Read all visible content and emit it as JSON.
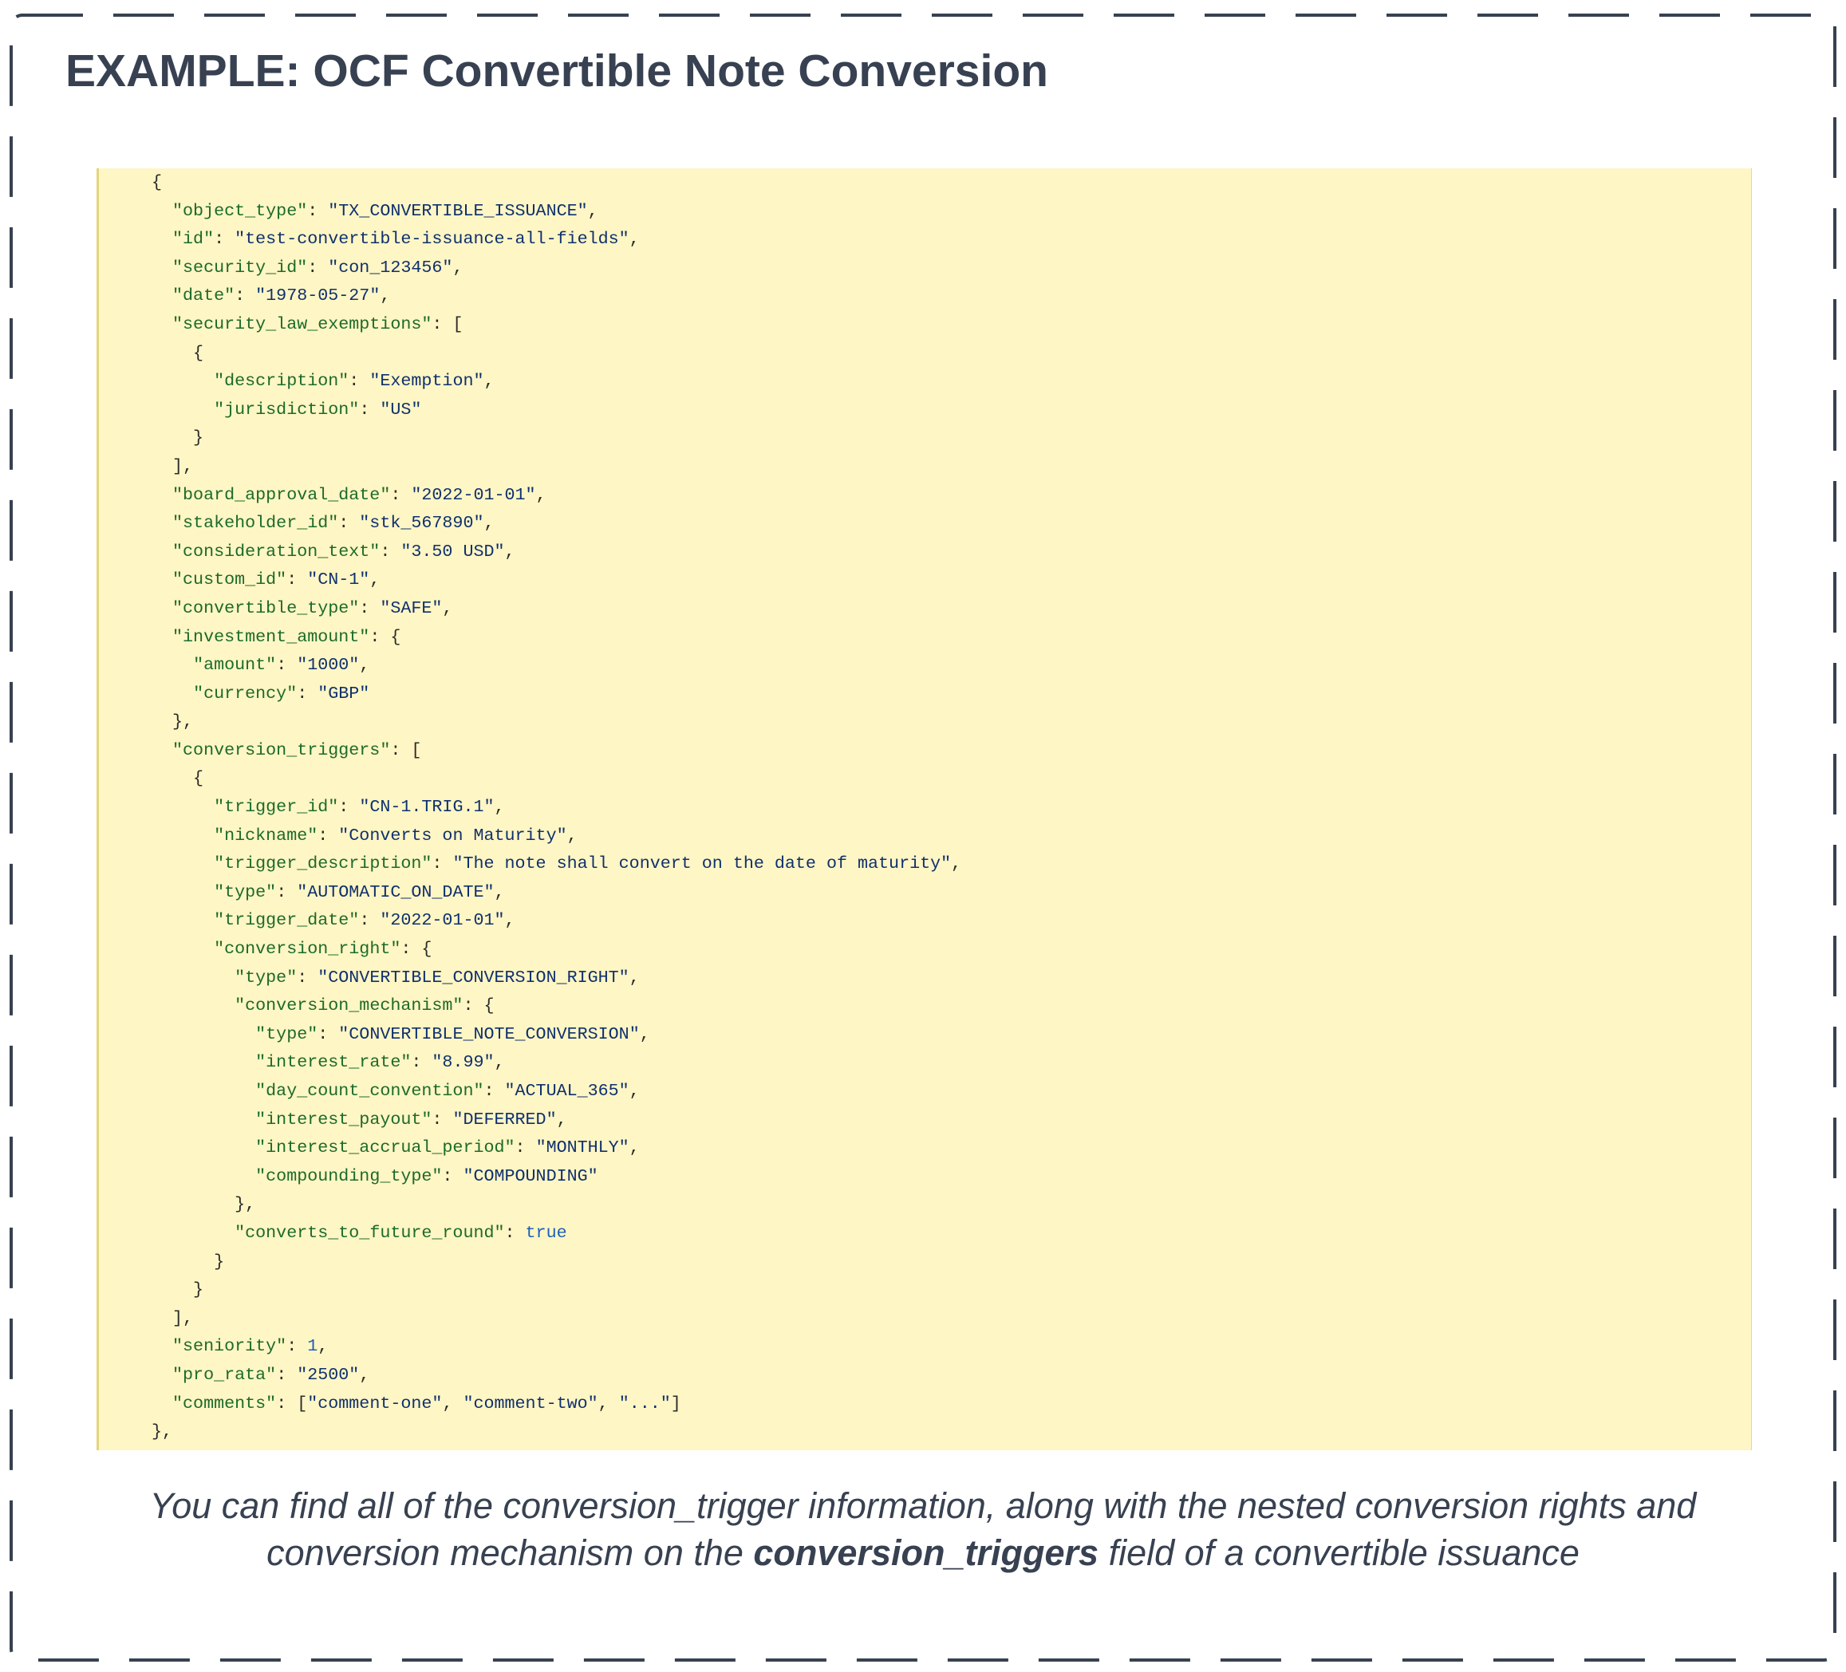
{
  "title": "EXAMPLE: OCF Convertible Note Conversion",
  "colors": {
    "border": "#374151",
    "code_bg": "#fef6c4",
    "key": "#1d6a2b",
    "string": "#10306e",
    "literal": "#1f5fb8"
  },
  "code_lines": [
    [
      [
        "p",
        "{"
      ]
    ],
    [
      [
        "p",
        "  "
      ],
      [
        "k",
        "\"object_type\""
      ],
      [
        "p",
        ": "
      ],
      [
        "s",
        "\"TX_CONVERTIBLE_ISSUANCE\""
      ],
      [
        "p",
        ","
      ]
    ],
    [
      [
        "p",
        "  "
      ],
      [
        "k",
        "\"id\""
      ],
      [
        "p",
        ": "
      ],
      [
        "s",
        "\"test-convertible-issuance-all-fields\""
      ],
      [
        "p",
        ","
      ]
    ],
    [
      [
        "p",
        "  "
      ],
      [
        "k",
        "\"security_id\""
      ],
      [
        "p",
        ": "
      ],
      [
        "s",
        "\"con_123456\""
      ],
      [
        "p",
        ","
      ]
    ],
    [
      [
        "p",
        "  "
      ],
      [
        "k",
        "\"date\""
      ],
      [
        "p",
        ": "
      ],
      [
        "s",
        "\"1978-05-27\""
      ],
      [
        "p",
        ","
      ]
    ],
    [
      [
        "p",
        "  "
      ],
      [
        "k",
        "\"security_law_exemptions\""
      ],
      [
        "p",
        ": ["
      ]
    ],
    [
      [
        "p",
        "    {"
      ]
    ],
    [
      [
        "p",
        "      "
      ],
      [
        "k",
        "\"description\""
      ],
      [
        "p",
        ": "
      ],
      [
        "s",
        "\"Exemption\""
      ],
      [
        "p",
        ","
      ]
    ],
    [
      [
        "p",
        "      "
      ],
      [
        "k",
        "\"jurisdiction\""
      ],
      [
        "p",
        ": "
      ],
      [
        "s",
        "\"US\""
      ]
    ],
    [
      [
        "p",
        "    }"
      ]
    ],
    [
      [
        "p",
        "  ],"
      ]
    ],
    [
      [
        "p",
        "  "
      ],
      [
        "k",
        "\"board_approval_date\""
      ],
      [
        "p",
        ": "
      ],
      [
        "s",
        "\"2022-01-01\""
      ],
      [
        "p",
        ","
      ]
    ],
    [
      [
        "p",
        "  "
      ],
      [
        "k",
        "\"stakeholder_id\""
      ],
      [
        "p",
        ": "
      ],
      [
        "s",
        "\"stk_567890\""
      ],
      [
        "p",
        ","
      ]
    ],
    [
      [
        "p",
        "  "
      ],
      [
        "k",
        "\"consideration_text\""
      ],
      [
        "p",
        ": "
      ],
      [
        "s",
        "\"3.50 USD\""
      ],
      [
        "p",
        ","
      ]
    ],
    [
      [
        "p",
        "  "
      ],
      [
        "k",
        "\"custom_id\""
      ],
      [
        "p",
        ": "
      ],
      [
        "s",
        "\"CN-1\""
      ],
      [
        "p",
        ","
      ]
    ],
    [
      [
        "p",
        "  "
      ],
      [
        "k",
        "\"convertible_type\""
      ],
      [
        "p",
        ": "
      ],
      [
        "s",
        "\"SAFE\""
      ],
      [
        "p",
        ","
      ]
    ],
    [
      [
        "p",
        "  "
      ],
      [
        "k",
        "\"investment_amount\""
      ],
      [
        "p",
        ": {"
      ]
    ],
    [
      [
        "p",
        "    "
      ],
      [
        "k",
        "\"amount\""
      ],
      [
        "p",
        ": "
      ],
      [
        "s",
        "\"1000\""
      ],
      [
        "p",
        ","
      ]
    ],
    [
      [
        "p",
        "    "
      ],
      [
        "k",
        "\"currency\""
      ],
      [
        "p",
        ": "
      ],
      [
        "s",
        "\"GBP\""
      ]
    ],
    [
      [
        "p",
        "  },"
      ]
    ],
    [
      [
        "p",
        "  "
      ],
      [
        "k",
        "\"conversion_triggers\""
      ],
      [
        "p",
        ": ["
      ]
    ],
    [
      [
        "p",
        "    {"
      ]
    ],
    [
      [
        "p",
        "      "
      ],
      [
        "k",
        "\"trigger_id\""
      ],
      [
        "p",
        ": "
      ],
      [
        "s",
        "\"CN-1.TRIG.1\""
      ],
      [
        "p",
        ","
      ]
    ],
    [
      [
        "p",
        "      "
      ],
      [
        "k",
        "\"nickname\""
      ],
      [
        "p",
        ": "
      ],
      [
        "s",
        "\"Converts on Maturity\""
      ],
      [
        "p",
        ","
      ]
    ],
    [
      [
        "p",
        "      "
      ],
      [
        "k",
        "\"trigger_description\""
      ],
      [
        "p",
        ": "
      ],
      [
        "s",
        "\"The note shall convert on the date of maturity\""
      ],
      [
        "p",
        ","
      ]
    ],
    [
      [
        "p",
        "      "
      ],
      [
        "k",
        "\"type\""
      ],
      [
        "p",
        ": "
      ],
      [
        "s",
        "\"AUTOMATIC_ON_DATE\""
      ],
      [
        "p",
        ","
      ]
    ],
    [
      [
        "p",
        "      "
      ],
      [
        "k",
        "\"trigger_date\""
      ],
      [
        "p",
        ": "
      ],
      [
        "s",
        "\"2022-01-01\""
      ],
      [
        "p",
        ","
      ]
    ],
    [
      [
        "p",
        "      "
      ],
      [
        "k",
        "\"conversion_right\""
      ],
      [
        "p",
        ": {"
      ]
    ],
    [
      [
        "p",
        "        "
      ],
      [
        "k",
        "\"type\""
      ],
      [
        "p",
        ": "
      ],
      [
        "s",
        "\"CONVERTIBLE_CONVERSION_RIGHT\""
      ],
      [
        "p",
        ","
      ]
    ],
    [
      [
        "p",
        "        "
      ],
      [
        "k",
        "\"conversion_mechanism\""
      ],
      [
        "p",
        ": {"
      ]
    ],
    [
      [
        "p",
        "          "
      ],
      [
        "k",
        "\"type\""
      ],
      [
        "p",
        ": "
      ],
      [
        "s",
        "\"CONVERTIBLE_NOTE_CONVERSION\""
      ],
      [
        "p",
        ","
      ]
    ],
    [
      [
        "p",
        "          "
      ],
      [
        "k",
        "\"interest_rate\""
      ],
      [
        "p",
        ": "
      ],
      [
        "s",
        "\"8.99\""
      ],
      [
        "p",
        ","
      ]
    ],
    [
      [
        "p",
        "          "
      ],
      [
        "k",
        "\"day_count_convention\""
      ],
      [
        "p",
        ": "
      ],
      [
        "s",
        "\"ACTUAL_365\""
      ],
      [
        "p",
        ","
      ]
    ],
    [
      [
        "p",
        "          "
      ],
      [
        "k",
        "\"interest_payout\""
      ],
      [
        "p",
        ": "
      ],
      [
        "s",
        "\"DEFERRED\""
      ],
      [
        "p",
        ","
      ]
    ],
    [
      [
        "p",
        "          "
      ],
      [
        "k",
        "\"interest_accrual_period\""
      ],
      [
        "p",
        ": "
      ],
      [
        "s",
        "\"MONTHLY\""
      ],
      [
        "p",
        ","
      ]
    ],
    [
      [
        "p",
        "          "
      ],
      [
        "k",
        "\"compounding_type\""
      ],
      [
        "p",
        ": "
      ],
      [
        "s",
        "\"COMPOUNDING\""
      ]
    ],
    [
      [
        "p",
        "        },"
      ]
    ],
    [
      [
        "p",
        "        "
      ],
      [
        "k",
        "\"converts_to_future_round\""
      ],
      [
        "p",
        ": "
      ],
      [
        "n",
        "true"
      ]
    ],
    [
      [
        "p",
        "      }"
      ]
    ],
    [
      [
        "p",
        "    }"
      ]
    ],
    [
      [
        "p",
        "  ],"
      ]
    ],
    [
      [
        "p",
        "  "
      ],
      [
        "k",
        "\"seniority\""
      ],
      [
        "p",
        ": "
      ],
      [
        "n",
        "1"
      ],
      [
        "p",
        ","
      ]
    ],
    [
      [
        "p",
        "  "
      ],
      [
        "k",
        "\"pro_rata\""
      ],
      [
        "p",
        ": "
      ],
      [
        "s",
        "\"2500\""
      ],
      [
        "p",
        ","
      ]
    ],
    [
      [
        "p",
        "  "
      ],
      [
        "k",
        "\"comments\""
      ],
      [
        "p",
        ": ["
      ],
      [
        "s",
        "\"comment-one\""
      ],
      [
        "p",
        ", "
      ],
      [
        "s",
        "\"comment-two\""
      ],
      [
        "p",
        ", "
      ],
      [
        "s",
        "\"...\""
      ],
      [
        "p",
        "]"
      ]
    ],
    [
      [
        "p",
        "},"
      ]
    ]
  ],
  "caption": {
    "before": "You can find all of the conversion_trigger information, along with the nested conversion rights and conversion mechanism on the ",
    "bold": "conversion_triggers",
    "after": " field of a convertible issuance"
  }
}
